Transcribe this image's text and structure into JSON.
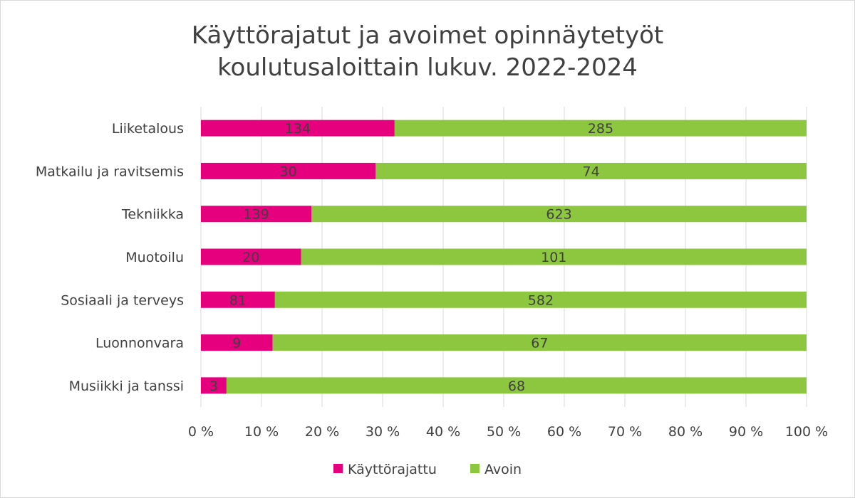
{
  "chart_data": {
    "type": "bar",
    "orientation": "horizontal",
    "stacked": "percent",
    "title": "Käyttörajatut ja avoimet opinnäytetyöt koulutusaloittain lukuv. 2022-2024",
    "title_lines": [
      "Käyttörajatut ja avoimet opinnäytetyöt",
      "koulutusaloittain lukuv. 2022-2024"
    ],
    "categories": [
      "Liiketalous",
      "Matkailu ja ravitsemis",
      "Tekniikka",
      "Muotoilu",
      "Sosiaali ja terveys",
      "Luonnonvara",
      "Musiikki ja tanssi"
    ],
    "series": [
      {
        "name": "Käyttörajattu",
        "color": "#e6007e",
        "values": [
          134,
          30,
          139,
          20,
          81,
          9,
          3
        ]
      },
      {
        "name": "Avoin",
        "color": "#8dc63f",
        "values": [
          285,
          74,
          623,
          101,
          582,
          67,
          68
        ]
      }
    ],
    "x_ticks": [
      "0 %",
      "10 %",
      "20 %",
      "30 %",
      "40 %",
      "50 %",
      "60 %",
      "70 %",
      "80 %",
      "90 %",
      "100 %"
    ],
    "xlim": [
      0,
      100
    ],
    "grid": "vertical",
    "legend_position": "bottom"
  }
}
